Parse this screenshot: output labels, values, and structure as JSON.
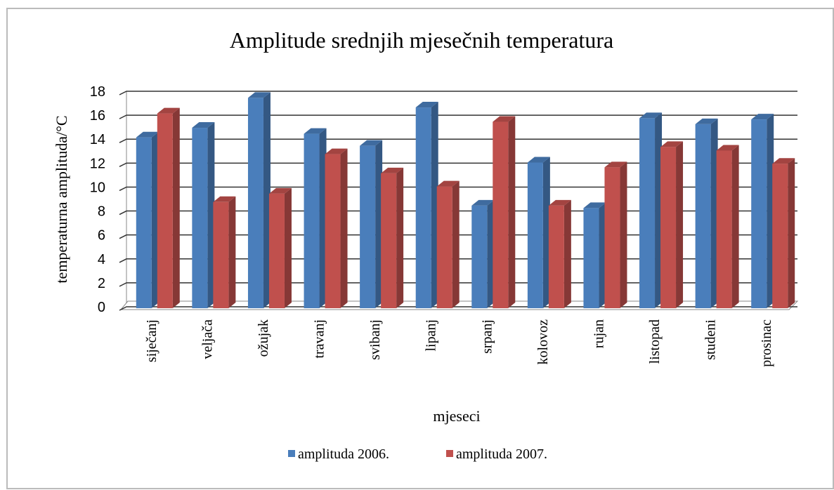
{
  "chart_data": {
    "type": "bar",
    "title": "Amplitude srednjih mjesečnih temperatura",
    "x_label": "mjeseci",
    "y_label": "temperaturna amplituda/°C",
    "categories": [
      "siječanj",
      "veljača",
      "ožujak",
      "travanj",
      "svibanj",
      "lipanj",
      "srpanj",
      "kolovoz",
      "rujan",
      "listopad",
      "studeni",
      "prosinac"
    ],
    "series": [
      {
        "name": "amplituda 2006.",
        "color": "#4a7ebb",
        "values": [
          14.5,
          15.3,
          17.8,
          14.8,
          13.8,
          17.0,
          8.8,
          12.4,
          8.6,
          16.1,
          15.6,
          16.0
        ]
      },
      {
        "name": "amplituda 2007.",
        "color": "#c0504d",
        "values": [
          16.5,
          9.1,
          9.8,
          13.1,
          11.5,
          10.4,
          15.8,
          8.8,
          12.0,
          13.7,
          13.4,
          12.3
        ]
      }
    ],
    "ylim": [
      0,
      18
    ],
    "yticks": [
      0,
      2,
      4,
      6,
      8,
      10,
      12,
      14,
      16,
      18
    ],
    "grid": true,
    "legend": "bottom"
  }
}
